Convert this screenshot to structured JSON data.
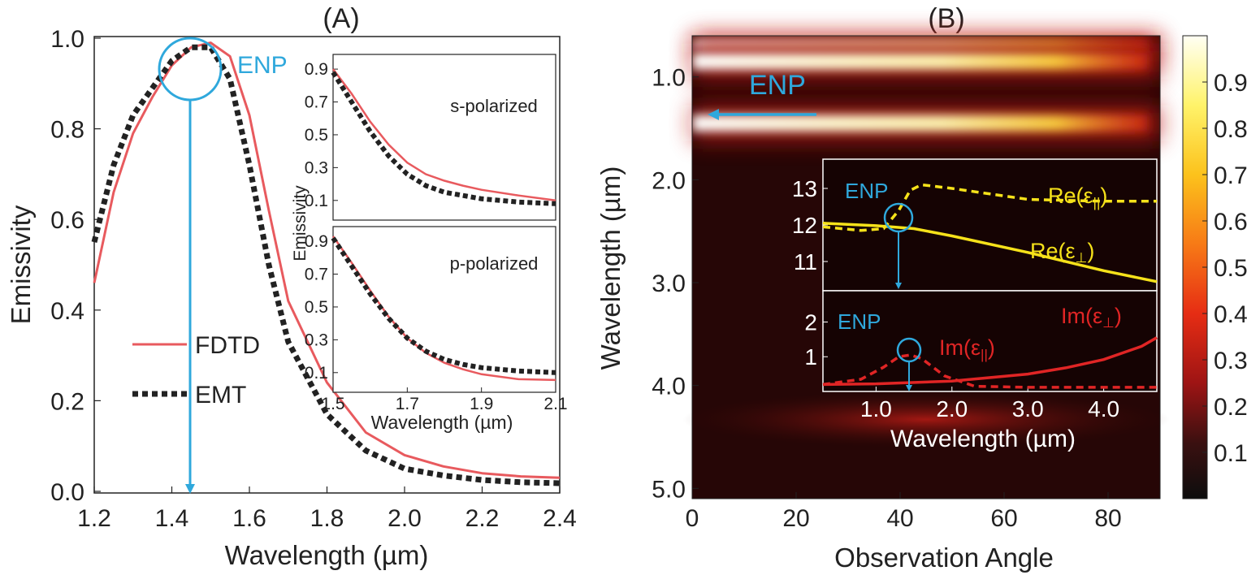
{
  "colors": {
    "fdtd": "#e85a5e",
    "emt": "#222222",
    "enp": "#2fa8dc",
    "re": "#f6e21a",
    "im": "#e02525"
  },
  "chart_data": [
    {
      "type": "line",
      "panel": "(A)",
      "xlabel": "Wavelength (µm)",
      "ylabel": "Emissivity",
      "xlim": [
        1.2,
        2.4
      ],
      "ylim": [
        0.0,
        1.0
      ],
      "x_ticks": [
        "1.2",
        "1.4",
        "1.6",
        "1.8",
        "2.0",
        "2.2",
        "2.4"
      ],
      "y_ticks": [
        "0.0",
        "0.2",
        "0.4",
        "0.6",
        "0.8",
        "1.0"
      ],
      "series": [
        {
          "name": "FDTD",
          "style": "solid",
          "x": [
            1.2,
            1.25,
            1.3,
            1.35,
            1.4,
            1.45,
            1.5,
            1.55,
            1.6,
            1.65,
            1.7,
            1.8,
            1.9,
            2.0,
            2.1,
            2.2,
            2.3,
            2.4
          ],
          "y": [
            0.46,
            0.66,
            0.79,
            0.87,
            0.94,
            0.98,
            0.99,
            0.96,
            0.83,
            0.62,
            0.42,
            0.24,
            0.13,
            0.08,
            0.055,
            0.04,
            0.033,
            0.03
          ]
        },
        {
          "name": "EMT",
          "style": "dotted",
          "x": [
            1.2,
            1.25,
            1.3,
            1.35,
            1.4,
            1.45,
            1.5,
            1.55,
            1.6,
            1.65,
            1.7,
            1.8,
            1.9,
            2.0,
            2.1,
            2.2,
            2.3,
            2.4
          ],
          "y": [
            0.55,
            0.72,
            0.83,
            0.89,
            0.95,
            0.98,
            0.98,
            0.91,
            0.72,
            0.5,
            0.33,
            0.17,
            0.09,
            0.05,
            0.035,
            0.025,
            0.02,
            0.018
          ]
        }
      ],
      "legend": [
        "FDTD",
        "EMT"
      ],
      "annotations": [
        {
          "text": "ENP",
          "x": 1.46,
          "y": 0.93
        }
      ]
    },
    {
      "type": "line",
      "panel": "inset s-polarized",
      "title": "s-polarized",
      "ylabel": "Emissivity",
      "xlim": [
        1.5,
        2.1
      ],
      "ylim": [
        0.0,
        0.95
      ],
      "y_ticks": [
        "0.9",
        "0.7",
        "0.5",
        "0.3",
        "0.1"
      ],
      "series": [
        {
          "name": "FDTD",
          "x": [
            1.5,
            1.55,
            1.6,
            1.65,
            1.7,
            1.75,
            1.8,
            1.85,
            1.9,
            2.0,
            2.1
          ],
          "y": [
            0.9,
            0.75,
            0.58,
            0.44,
            0.33,
            0.26,
            0.22,
            0.19,
            0.165,
            0.13,
            0.1
          ]
        },
        {
          "name": "EMT",
          "x": [
            1.5,
            1.55,
            1.6,
            1.65,
            1.7,
            1.75,
            1.8,
            1.85,
            1.9,
            2.0,
            2.1
          ],
          "y": [
            0.88,
            0.7,
            0.52,
            0.37,
            0.26,
            0.19,
            0.15,
            0.13,
            0.11,
            0.09,
            0.08
          ]
        }
      ]
    },
    {
      "type": "line",
      "panel": "inset p-polarized",
      "title": "p-polarized",
      "xlabel": "Wavelength (µm)",
      "xlim": [
        1.5,
        2.1
      ],
      "ylim": [
        0.0,
        0.95
      ],
      "x_ticks": [
        "1.5",
        "1.7",
        "1.9",
        "2.1"
      ],
      "y_ticks": [
        "0.9",
        "0.7",
        "0.5",
        "0.3",
        "0.1"
      ],
      "series": [
        {
          "name": "FDTD",
          "x": [
            1.5,
            1.55,
            1.6,
            1.65,
            1.7,
            1.75,
            1.8,
            1.85,
            1.9,
            2.0,
            2.1
          ],
          "y": [
            0.93,
            0.77,
            0.6,
            0.44,
            0.31,
            0.22,
            0.16,
            0.12,
            0.09,
            0.06,
            0.055
          ]
        },
        {
          "name": "EMT",
          "x": [
            1.5,
            1.55,
            1.6,
            1.65,
            1.7,
            1.75,
            1.8,
            1.85,
            1.9,
            2.0,
            2.1
          ],
          "y": [
            0.92,
            0.75,
            0.58,
            0.43,
            0.31,
            0.23,
            0.18,
            0.15,
            0.13,
            0.11,
            0.1
          ]
        }
      ]
    },
    {
      "type": "heatmap",
      "panel": "(B)",
      "xlabel": "Observation Angle",
      "ylabel": "Wavelength (µm)",
      "xlim": [
        0,
        90
      ],
      "ylim": [
        0.6,
        5.1
      ],
      "x_ticks": [
        "0",
        "20",
        "40",
        "60",
        "80"
      ],
      "y_ticks": [
        "1.0",
        "2.0",
        "3.0",
        "4.0",
        "5.0"
      ],
      "bands": [
        {
          "wavelength": 0.68,
          "value": 0.85
        },
        {
          "wavelength": 0.85,
          "value": 0.92
        },
        {
          "wavelength": 1.45,
          "value": 0.98
        },
        {
          "wavelength": 4.33,
          "value": 0.35
        }
      ],
      "colorbar": {
        "min": 0.0,
        "max": 1.0,
        "ticks": [
          "0.9",
          "0.8",
          "0.7",
          "0.6",
          "0.5",
          "0.4",
          "0.3",
          "0.2",
          "0.1"
        ]
      },
      "annotations": [
        {
          "text": "ENP",
          "wavelength": 1.45
        }
      ]
    },
    {
      "type": "line",
      "panel": "inset permittivity real",
      "xlim": [
        0.3,
        4.7
      ],
      "ylim": [
        10.2,
        13.8
      ],
      "y_ticks": [
        "13",
        "12",
        "11"
      ],
      "series": [
        {
          "name": "Re(ε||)",
          "style": "dashed",
          "x": [
            0.3,
            0.8,
            1.1,
            1.3,
            1.45,
            1.6,
            2.0,
            3.0,
            4.0,
            4.7
          ],
          "y": [
            11.95,
            11.85,
            11.9,
            12.4,
            12.95,
            13.1,
            13.0,
            12.7,
            12.65,
            12.65
          ]
        },
        {
          "name": "Re(ε⊥)",
          "style": "solid",
          "x": [
            0.3,
            1.0,
            1.5,
            2.0,
            3.0,
            4.0,
            4.7
          ],
          "y": [
            12.05,
            11.98,
            11.9,
            11.7,
            11.25,
            10.75,
            10.45
          ]
        }
      ],
      "annotations": [
        {
          "text": "ENP",
          "x": 1.4,
          "y": 12.0
        }
      ]
    },
    {
      "type": "line",
      "panel": "inset permittivity imaginary",
      "xlabel": "Wavelength (µm)",
      "xlim": [
        0.3,
        4.7
      ],
      "ylim": [
        0.0,
        2.9
      ],
      "x_ticks": [
        "1.0",
        "2.0",
        "3.0",
        "4.0"
      ],
      "y_ticks": [
        "2",
        "1"
      ],
      "series": [
        {
          "name": "Im(ε||)",
          "style": "dashed",
          "x": [
            0.3,
            0.8,
            1.1,
            1.3,
            1.45,
            1.6,
            1.9,
            2.3,
            3.0,
            4.0,
            4.7
          ],
          "y": [
            0.2,
            0.35,
            0.7,
            1.0,
            1.05,
            0.95,
            0.45,
            0.15,
            0.12,
            0.12,
            0.12
          ]
        },
        {
          "name": "Im(ε⊥)",
          "style": "solid",
          "x": [
            0.3,
            1.0,
            2.0,
            3.0,
            3.5,
            4.0,
            4.5,
            4.7
          ],
          "y": [
            0.2,
            0.22,
            0.3,
            0.5,
            0.68,
            0.92,
            1.3,
            1.55
          ]
        }
      ],
      "annotations": [
        {
          "text": "ENP",
          "x": 1.45,
          "y": 1.0
        }
      ]
    }
  ],
  "labels": {
    "panel_a": "(A)",
    "panel_b": "(B)",
    "enp": "ENP",
    "fdtd": "FDTD",
    "emt": "EMT",
    "emissivity": "Emissivity",
    "wavelength_um": "Wavelength (µm)",
    "observation_angle": "Observation Angle",
    "s_polarized": "s-polarized",
    "p_polarized": "p-polarized",
    "re_parallel": "Re(ε",
    "re_parallel_sub": "||",
    "re_perp": "Re(ε",
    "re_perp_sub": "⊥",
    "im_parallel": "Im(ε",
    "im_parallel_sub": "||",
    "im_perp": "Im(ε",
    "im_perp_sub": "⊥",
    "close_paren": ")"
  }
}
